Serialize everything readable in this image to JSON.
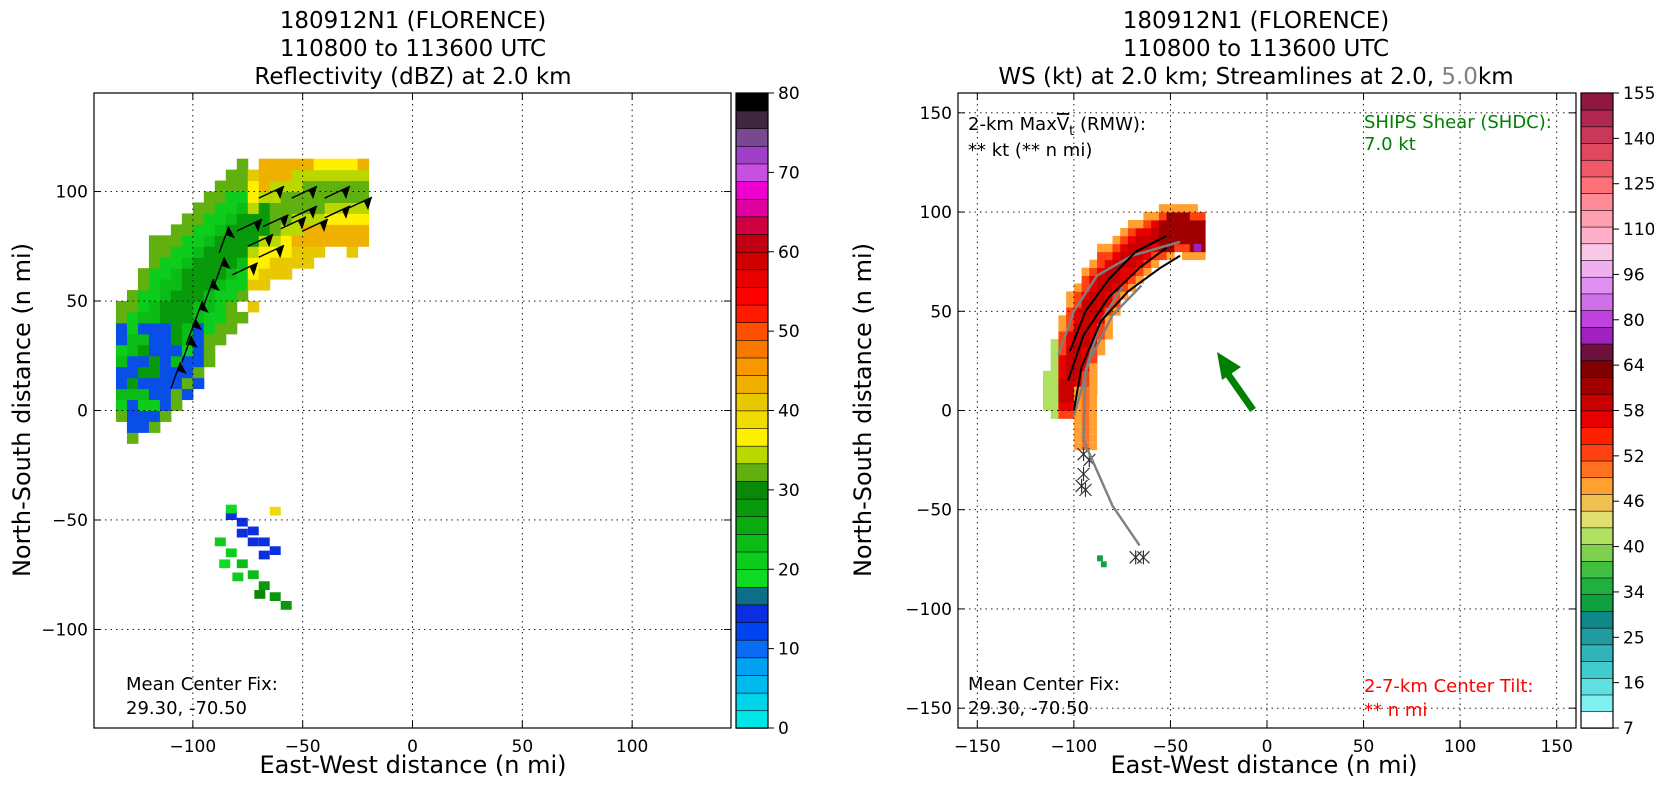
{
  "figure": {
    "left": {
      "title_line1": "180912N1 (FLORENCE)",
      "title_line2": "110800 to 113600 UTC",
      "title_line3": "Reflectivity (dBZ) at 2.0 km",
      "xlabel": "East-West distance (n mi)",
      "ylabel": "North-South distance (n mi)",
      "center_fix_label": "Mean Center Fix:",
      "center_fix_value": "29.30, -70.50"
    },
    "right": {
      "title_line1": "180912N1 (FLORENCE)",
      "title_line2": "110800 to 113600 UTC",
      "title_line3_a": "WS (kt) at 2.0 km; Streamlines at 2.0,",
      "title_line3_b": "5.0",
      "title_line3_c": "km",
      "xlabel": "East-West distance (n mi)",
      "ylabel": "North-South distance (n mi)",
      "maxvt_label_prefix": "2-km Max",
      "maxvt_symbol": "V",
      "maxvt_sub": "t",
      "maxvt_label_suffix": "(RMW):",
      "maxvt_value": "** kt (** n mi)",
      "shear_label": "SHIPS Shear (SHDC):",
      "shear_value": "7.0 kt",
      "center_fix_label": "Mean Center Fix:",
      "center_fix_value": "29.30, -70.50",
      "tilt_label": "2-7-km Center Tilt:",
      "tilt_value": "** n mi"
    }
  },
  "colors": {
    "shear_text": "#008000",
    "tilt_text": "#ff0000",
    "streamline_5km": "#808080",
    "streamline_2km": "#000000",
    "shear_arrow": "#008000"
  },
  "chart_data": [
    {
      "type": "heatmap",
      "title": "180912N1 (FLORENCE) 110800 to 113600 UTC Reflectivity (dBZ) at 2.0 km",
      "xlabel": "East-West distance (n mi)",
      "ylabel": "North-South distance (n mi)",
      "xlim": [
        -145,
        145
      ],
      "ylim": [
        -145,
        145
      ],
      "xticks": [
        -100,
        -50,
        0,
        50,
        100
      ],
      "xtick_labels": [
        "−100",
        "−50",
        "0",
        "50",
        "100"
      ],
      "yticks": [
        -100,
        -50,
        0,
        50,
        100
      ],
      "ytick_labels": [
        "−100",
        "−50",
        "0",
        "50",
        "100"
      ],
      "grid": true,
      "colorbar": {
        "label_values": [
          "0",
          "10",
          "20",
          "30",
          "40",
          "50",
          "60",
          "70",
          "80"
        ],
        "min": 0,
        "max": 80,
        "step": 2.5,
        "colors": [
          "#00e5e5",
          "#00d3ea",
          "#00baee",
          "#00a0f2",
          "#0a6cf5",
          "#0044ef",
          "#0a2ee0",
          "#0e6d88",
          "#0ddc22",
          "#0ccc1c",
          "#0bbb16",
          "#0aaa10",
          "#099a0c",
          "#088a08",
          "#60b010",
          "#b8d800",
          "#fff000",
          "#f0dc00",
          "#e8c800",
          "#f0b000",
          "#f89800",
          "#fb7800",
          "#ff5000",
          "#ff1a00",
          "#ff0000",
          "#e80000",
          "#d00000",
          "#c00010",
          "#d00040",
          "#e000a0",
          "#f000d0",
          "#c850e0",
          "#a040c8",
          "#784890",
          "#402840",
          "#000000"
        ]
      },
      "notes": [
        "Mean Center Fix:",
        "29.30, -70.50"
      ]
    },
    {
      "type": "heatmap",
      "title": "180912N1 (FLORENCE) 110800 to 113600 UTC WS (kt) at 2.0 km; Streamlines at 2.0, 5.0 km",
      "xlabel": "East-West distance (n mi)",
      "ylabel": "North-South distance (n mi)",
      "xlim": [
        -160,
        160
      ],
      "ylim": [
        -160,
        160
      ],
      "xticks": [
        -150,
        -100,
        -50,
        0,
        50,
        100,
        150
      ],
      "xtick_labels": [
        "−150",
        "−100",
        "−50",
        "0",
        "50",
        "100",
        "150"
      ],
      "yticks": [
        -150,
        -100,
        -50,
        0,
        50,
        100,
        150
      ],
      "ytick_labels": [
        "−150",
        "−100",
        "−50",
        "0",
        "50",
        "100",
        "150"
      ],
      "grid": true,
      "colorbar": {
        "label_values": [
          "7",
          "16",
          "25",
          "34",
          "40",
          "46",
          "52",
          "58",
          "64",
          "80",
          "96",
          "110",
          "125",
          "140",
          "155"
        ],
        "colors": [
          "#ffffff",
          "#80f0f0",
          "#60e0e0",
          "#40cccc",
          "#30b4b8",
          "#209ca0",
          "#108888",
          "#10a040",
          "#20b040",
          "#40c040",
          "#80d050",
          "#b0e060",
          "#e0e070",
          "#f0c050",
          "#ffa030",
          "#ff7020",
          "#ff4010",
          "#ff2000",
          "#e80000",
          "#c80000",
          "#a00000",
          "#800000",
          "#70103c",
          "#a020c0",
          "#c040e0",
          "#d070e8",
          "#e090f0",
          "#f0b0f0",
          "#f8c8e8",
          "#ffb0c8",
          "#ffa0b0",
          "#ff8a98",
          "#ff7078",
          "#f05a68",
          "#e04860",
          "#c83858",
          "#b02850",
          "#901840"
        ]
      },
      "shear_vector": {
        "direction": "northwest",
        "magnitude_kt": 7.0
      },
      "notes": [
        "2-km MaxVt (RMW):",
        "** kt (** n mi)",
        "SHIPS Shear (SHDC):",
        "7.0 kt",
        "Mean Center Fix:",
        "29.30, -70.50",
        "2-7-km Center Tilt:",
        "** n mi"
      ]
    }
  ]
}
